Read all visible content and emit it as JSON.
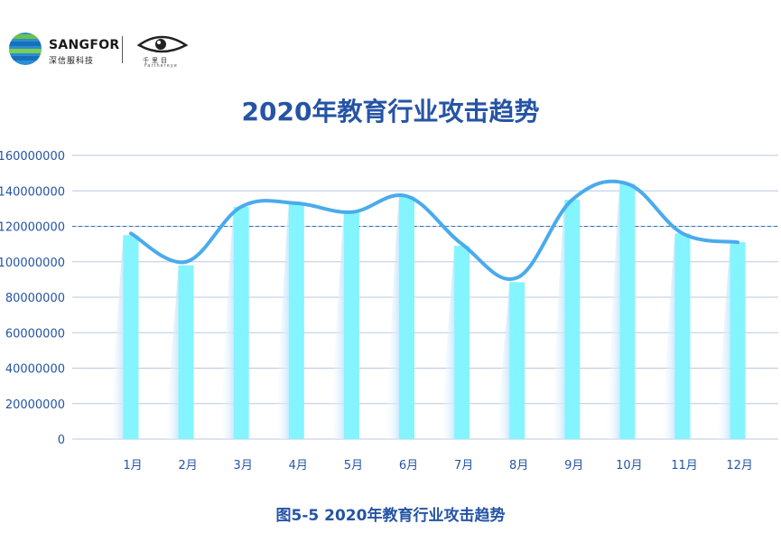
{
  "brand": {
    "name": "SANGFOR",
    "subtitle": "深信服科技",
    "partner": "千里目",
    "partner_sub": "Farthereye"
  },
  "title": "2020年教育行业攻击趋势",
  "caption": "图5-5  2020年教育行业攻击趋势",
  "colors": {
    "bar": "#84f4ff",
    "line": "#4aabec",
    "grid": "#b9c8e0",
    "text": "#2554a5",
    "reference": "#2c6fb5"
  },
  "chart_data": {
    "type": "bar",
    "title": "2020年教育行业攻击趋势",
    "categories": [
      "1月",
      "2月",
      "3月",
      "4月",
      "5月",
      "6月",
      "7月",
      "8月",
      "9月",
      "10月",
      "11月",
      "12月"
    ],
    "values": [
      115000000,
      98000000,
      131000000,
      133000000,
      128000000,
      137000000,
      109000000,
      88500000,
      135000000,
      144000000,
      116000000,
      111000000
    ],
    "line_values": [
      116000000,
      100000000,
      131000000,
      133000000,
      128000000,
      137000000,
      110000000,
      91000000,
      135000000,
      144000000,
      116000000,
      111000000
    ],
    "ylim": [
      0,
      160000000
    ],
    "yticks": [
      "0",
      "20000000",
      "40000000",
      "60000000",
      "80000000",
      "100000000",
      "120000000",
      "140000000",
      "160000000"
    ],
    "reference_line": 120000000,
    "grid": true
  }
}
